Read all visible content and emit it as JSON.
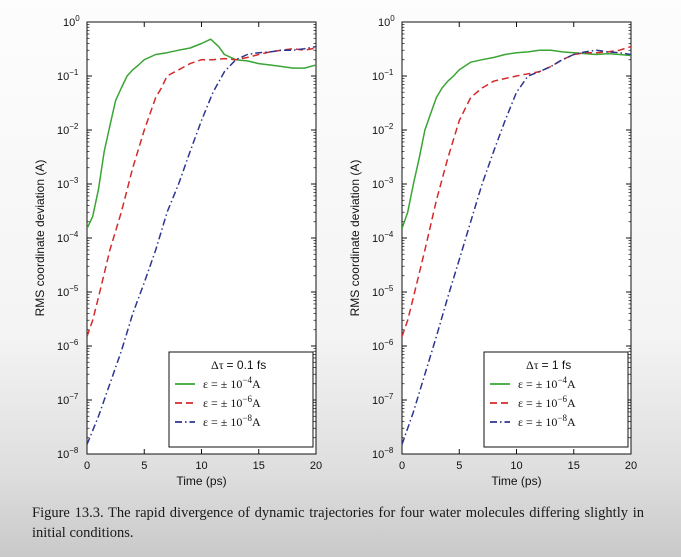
{
  "chart_data": [
    {
      "type": "line",
      "title": "",
      "xlabel": "Time (ps)",
      "ylabel": "RMS coordinate deviation (A)",
      "xlim": [
        0,
        20
      ],
      "ylim": [
        1e-08,
        1
      ],
      "yscale": "log",
      "xticks": [
        "0",
        "5",
        "10",
        "15",
        "20"
      ],
      "yticks": [
        {
          "base": "10",
          "exp": "0"
        },
        {
          "base": "10",
          "exp": "−1"
        },
        {
          "base": "10",
          "exp": "−2"
        },
        {
          "base": "10",
          "exp": "−3"
        },
        {
          "base": "10",
          "exp": "−4"
        },
        {
          "base": "10",
          "exp": "−5"
        },
        {
          "base": "10",
          "exp": "−6"
        },
        {
          "base": "10",
          "exp": "−7"
        },
        {
          "base": "10",
          "exp": "−8"
        }
      ],
      "legend": {
        "placement": "lower-right",
        "title_symbol": "Δτ",
        "title_text": "= 0.1 fs"
      },
      "series": [
        {
          "name_prefix": "ε = ± 10",
          "name_exp": "−4",
          "name_suffix": "A",
          "color": "#3aa535",
          "dash": "solid",
          "x": [
            0,
            0.5,
            1,
            1.5,
            2,
            2.5,
            3,
            3.5,
            4,
            4.5,
            5,
            6,
            7,
            8,
            9,
            10,
            10.8,
            11.5,
            12,
            13,
            14,
            15,
            16,
            17,
            18,
            19,
            20
          ],
          "y": [
            0.00015,
            0.00025,
            0.0008,
            0.004,
            0.012,
            0.035,
            0.06,
            0.1,
            0.13,
            0.16,
            0.2,
            0.25,
            0.27,
            0.3,
            0.33,
            0.4,
            0.48,
            0.35,
            0.25,
            0.2,
            0.19,
            0.17,
            0.16,
            0.15,
            0.14,
            0.14,
            0.16
          ]
        },
        {
          "name_prefix": "ε = ± 10",
          "name_exp": "−6",
          "name_suffix": "A",
          "color": "#d42a2a",
          "dash": "dashed",
          "x": [
            0,
            0.5,
            1,
            2,
            3,
            4,
            5,
            5.5,
            6,
            6.5,
            7,
            8,
            9,
            10,
            11,
            12,
            13,
            14,
            15,
            16,
            17,
            18,
            19,
            20
          ],
          "y": [
            1.5e-06,
            3e-06,
            8e-06,
            6e-05,
            0.0003,
            0.002,
            0.01,
            0.02,
            0.04,
            0.06,
            0.1,
            0.13,
            0.17,
            0.2,
            0.2,
            0.21,
            0.2,
            0.22,
            0.25,
            0.28,
            0.3,
            0.32,
            0.3,
            0.33
          ]
        },
        {
          "name_prefix": "ε = ± 10",
          "name_exp": "−8",
          "name_suffix": "A",
          "color": "#2e3590",
          "dash": "dashdot",
          "x": [
            0,
            1,
            2,
            3,
            4,
            5,
            6,
            7,
            8,
            9,
            10,
            11,
            12,
            13,
            14,
            15,
            16,
            17,
            18,
            19,
            20
          ],
          "y": [
            1.5e-08,
            5e-08,
            2e-07,
            8e-07,
            4e-06,
            1.5e-05,
            6e-05,
            0.0003,
            0.001,
            0.004,
            0.015,
            0.05,
            0.12,
            0.2,
            0.25,
            0.27,
            0.28,
            0.3,
            0.3,
            0.32,
            0.35
          ]
        }
      ]
    },
    {
      "type": "line",
      "title": "",
      "xlabel": "Time (ps)",
      "ylabel": "RMS coordinate deviation (A)",
      "xlim": [
        0,
        20
      ],
      "ylim": [
        1e-08,
        1
      ],
      "yscale": "log",
      "xticks": [
        "0",
        "5",
        "10",
        "15",
        "20"
      ],
      "yticks": [
        {
          "base": "10",
          "exp": "0"
        },
        {
          "base": "10",
          "exp": "−1"
        },
        {
          "base": "10",
          "exp": "−2"
        },
        {
          "base": "10",
          "exp": "−3"
        },
        {
          "base": "10",
          "exp": "−4"
        },
        {
          "base": "10",
          "exp": "−5"
        },
        {
          "base": "10",
          "exp": "−6"
        },
        {
          "base": "10",
          "exp": "−7"
        },
        {
          "base": "10",
          "exp": "−8"
        }
      ],
      "legend": {
        "placement": "lower-right",
        "title_symbol": "Δτ",
        "title_text": "= 1 fs"
      },
      "series": [
        {
          "name_prefix": "ε = ± 10",
          "name_exp": "−4",
          "name_suffix": "A",
          "color": "#3aa535",
          "dash": "solid",
          "x": [
            0,
            0.5,
            1,
            1.5,
            2,
            2.5,
            3,
            3.5,
            4,
            4.5,
            5,
            6,
            7,
            8,
            9,
            10,
            11,
            12,
            13,
            14,
            15,
            16,
            17,
            18,
            19,
            20
          ],
          "y": [
            0.00015,
            0.0003,
            0.001,
            0.003,
            0.01,
            0.02,
            0.04,
            0.06,
            0.08,
            0.1,
            0.13,
            0.18,
            0.2,
            0.22,
            0.25,
            0.27,
            0.28,
            0.3,
            0.3,
            0.28,
            0.27,
            0.26,
            0.25,
            0.26,
            0.25,
            0.24
          ]
        },
        {
          "name_prefix": "ε = ± 10",
          "name_exp": "−6",
          "name_suffix": "A",
          "color": "#d42a2a",
          "dash": "dashed",
          "x": [
            0,
            0.5,
            1,
            2,
            3,
            4,
            5,
            6,
            7,
            8,
            9,
            10,
            11,
            12,
            13,
            14,
            15,
            16,
            17,
            18,
            19,
            20
          ],
          "y": [
            1.5e-06,
            3e-06,
            8e-06,
            6e-05,
            0.0005,
            0.003,
            0.015,
            0.04,
            0.06,
            0.08,
            0.09,
            0.1,
            0.11,
            0.12,
            0.15,
            0.2,
            0.25,
            0.27,
            0.27,
            0.28,
            0.3,
            0.35
          ]
        },
        {
          "name_prefix": "ε = ± 10",
          "name_exp": "−8",
          "name_suffix": "A",
          "color": "#2e3590",
          "dash": "dashdot",
          "x": [
            0,
            1,
            2,
            3,
            4,
            5,
            6,
            7,
            8,
            9,
            10,
            11,
            12,
            13,
            14,
            15,
            16,
            17,
            18,
            19,
            20
          ],
          "y": [
            1.5e-08,
            6e-08,
            3e-07,
            1.5e-06,
            8e-06,
            4e-05,
            0.0002,
            0.001,
            0.004,
            0.015,
            0.05,
            0.1,
            0.12,
            0.15,
            0.2,
            0.25,
            0.28,
            0.3,
            0.28,
            0.27,
            0.25
          ]
        }
      ]
    }
  ],
  "caption": {
    "text": "Figure 13.3. The rapid divergence of dynamic trajectories for four water molecules differing slightly in initial conditions."
  }
}
